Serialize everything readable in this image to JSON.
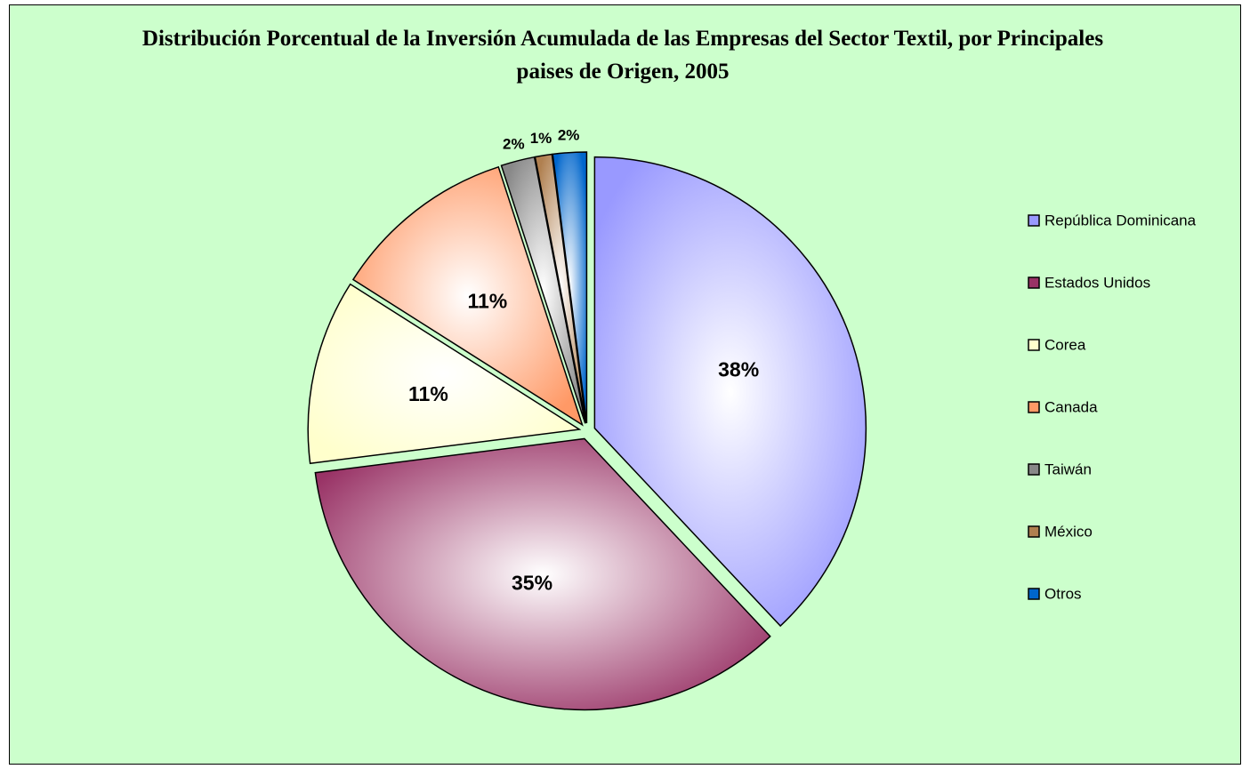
{
  "chart_data": {
    "type": "pie",
    "title": "Distribución Porcentual de la Inversión Acumulada de las Empresas del Sector Textil, por Principales paises de Origen, 2005",
    "categories": [
      "República Dominicana",
      "Estados Unidos",
      "Corea",
      "Canada",
      "Taiwán",
      "México",
      "Otros"
    ],
    "values": [
      38,
      35,
      11,
      11,
      2,
      1,
      2
    ],
    "value_labels": [
      "38%",
      "35%",
      "11%",
      "11%",
      "2%",
      "1%",
      "2%"
    ],
    "colors": [
      "#9999ff",
      "#993366",
      "#ffffcc",
      "#ff9966",
      "#888888",
      "#b08050",
      "#0066cc"
    ],
    "legend": "right"
  }
}
